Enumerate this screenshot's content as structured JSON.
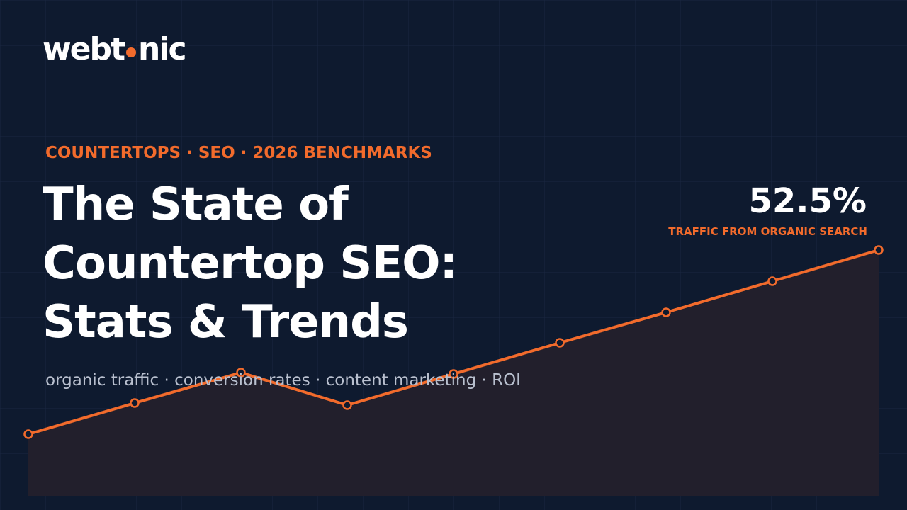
{
  "logo": {
    "left": "webt",
    "right": "nic"
  },
  "kicker": "COUNTERTOPS · SEO · 2026 BENCHMARKS",
  "title": [
    "The State of",
    "Countertop SEO:",
    "Stats & Trends"
  ],
  "subtitle": "organic traffic · conversion rates · content marketing · ROI",
  "stat": {
    "value": "52.5%",
    "label": "TRAFFIC FROM ORGANIC SEARCH"
  }
}
